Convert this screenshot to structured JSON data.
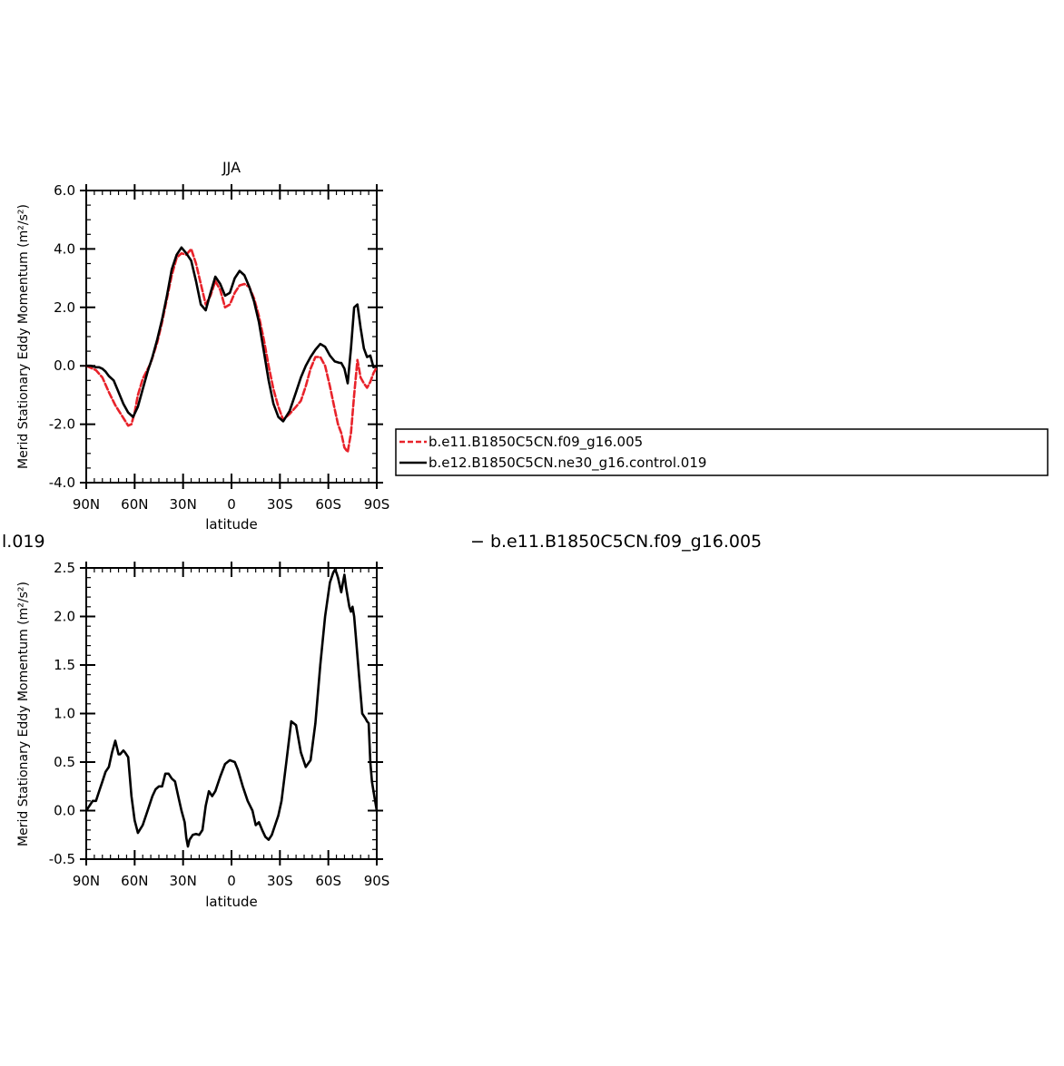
{
  "subtitle_partial": "l.019",
  "diff_title": "− b.e11.B1850C5CN.f09_g16.005",
  "chart_data": [
    {
      "type": "line",
      "title": "JJA",
      "xlabel": "latitude",
      "ylabel": "Merid Stationary Eddy Momentum (m²/s²)",
      "xlim": [
        90,
        -90
      ],
      "ylim": [
        -4,
        6
      ],
      "x_ticks": [
        90,
        60,
        30,
        0,
        -30,
        -60,
        -90
      ],
      "x_tick_labels": [
        "90N",
        "60N",
        "30N",
        "0",
        "30S",
        "60S",
        "90S"
      ],
      "y_ticks": [
        -4,
        -2,
        0,
        2,
        4,
        6
      ],
      "y_tick_labels": [
        "-4.0",
        "-2.0",
        "0.0",
        "2.0",
        "4.0",
        "6.0"
      ],
      "legend_position": "right",
      "series": [
        {
          "name": "b.e11.B1850C5CN.f09_g16.005",
          "color": "#e8222a",
          "dash": true,
          "x": [
            90,
            84,
            80,
            76,
            72,
            68,
            64,
            62,
            60,
            58,
            55,
            50,
            46,
            43,
            40,
            37,
            34,
            31,
            28,
            25,
            22,
            19,
            16,
            13,
            10,
            7,
            4,
            1,
            -2,
            -5,
            -8,
            -11,
            -14,
            -17,
            -20,
            -23,
            -26,
            -29,
            -32,
            -36,
            -40,
            -43,
            -46,
            -49,
            -52,
            -55,
            -58,
            -61,
            -64,
            -66,
            -68,
            -70,
            -72,
            -74,
            -76,
            -78,
            -80,
            -82,
            -84,
            -86,
            -88,
            -90
          ],
          "y": [
            0.0,
            -0.15,
            -0.4,
            -0.9,
            -1.35,
            -1.7,
            -2.05,
            -2.0,
            -1.6,
            -1.0,
            -0.45,
            0.1,
            0.8,
            1.5,
            2.3,
            3.1,
            3.7,
            3.85,
            3.8,
            4.0,
            3.5,
            2.8,
            2.1,
            2.4,
            2.9,
            2.6,
            2.0,
            2.1,
            2.5,
            2.75,
            2.8,
            2.7,
            2.3,
            1.7,
            0.9,
            0.0,
            -0.8,
            -1.4,
            -1.85,
            -1.65,
            -1.4,
            -1.2,
            -0.7,
            -0.1,
            0.3,
            0.3,
            0.0,
            -0.7,
            -1.5,
            -2.0,
            -2.3,
            -2.8,
            -2.95,
            -2.3,
            -1.0,
            0.2,
            -0.4,
            -0.6,
            -0.75,
            -0.55,
            -0.25,
            -0.05
          ]
        },
        {
          "name": "b.e12.B1850C5CN.ne30_g16.control.019",
          "color": "#000000",
          "dash": false,
          "x": [
            90,
            87,
            84,
            82,
            80,
            78,
            76,
            73,
            70,
            67,
            64,
            61,
            58,
            55,
            52,
            49,
            46,
            43,
            40,
            37,
            34,
            31,
            28,
            25,
            22,
            19,
            16,
            13,
            10,
            7,
            4,
            1,
            -2,
            -5,
            -8,
            -11,
            -14,
            -17,
            -20,
            -23,
            -26,
            -29,
            -32,
            -36,
            -40,
            -43,
            -46,
            -49,
            -52,
            -55,
            -58,
            -61,
            -64,
            -67,
            -68,
            -70,
            -72,
            -74,
            -76,
            -78,
            -80,
            -82,
            -84,
            -86,
            -88,
            -90
          ],
          "y": [
            0.0,
            0.0,
            -0.05,
            -0.05,
            -0.1,
            -0.2,
            -0.35,
            -0.5,
            -0.9,
            -1.3,
            -1.6,
            -1.75,
            -1.4,
            -0.8,
            -0.2,
            0.3,
            0.9,
            1.6,
            2.4,
            3.3,
            3.8,
            4.05,
            3.85,
            3.6,
            2.9,
            2.1,
            1.9,
            2.5,
            3.05,
            2.8,
            2.4,
            2.5,
            3.0,
            3.25,
            3.1,
            2.7,
            2.2,
            1.5,
            0.5,
            -0.5,
            -1.3,
            -1.75,
            -1.9,
            -1.55,
            -0.9,
            -0.4,
            0.0,
            0.3,
            0.55,
            0.75,
            0.65,
            0.35,
            0.15,
            0.1,
            0.1,
            -0.1,
            -0.6,
            0.6,
            2.0,
            2.1,
            1.3,
            0.6,
            0.3,
            0.35,
            -0.05,
            0.0
          ]
        }
      ]
    },
    {
      "type": "line",
      "title": "",
      "xlabel": "latitude",
      "ylabel": "Merid Stationary Eddy Momentum (m²/s²)",
      "xlim": [
        90,
        -90
      ],
      "ylim": [
        -0.5,
        2.5
      ],
      "x_ticks": [
        90,
        60,
        30,
        0,
        -30,
        -60,
        -90
      ],
      "x_tick_labels": [
        "90N",
        "60N",
        "30N",
        "0",
        "30S",
        "60S",
        "90S"
      ],
      "y_ticks": [
        -0.5,
        0.0,
        0.5,
        1.0,
        1.5,
        2.0,
        2.5
      ],
      "y_tick_labels": [
        "-0.5",
        "0.0",
        "0.5",
        "1.0",
        "1.5",
        "2.0",
        "2.5"
      ],
      "series": [
        {
          "color": "#000000",
          "dash": false,
          "x": [
            90,
            88,
            86,
            84,
            82,
            80,
            78,
            76,
            74,
            72,
            71,
            70,
            69,
            68,
            67,
            66,
            64,
            62,
            60,
            58,
            55,
            52,
            49,
            47,
            45,
            43,
            41,
            39,
            37,
            35,
            33,
            31,
            29,
            28,
            27,
            26,
            24,
            22,
            20,
            18,
            16,
            14,
            12,
            10,
            7,
            4,
            1,
            -2,
            -4,
            -7,
            -10,
            -13,
            -15,
            -17,
            -19,
            -21,
            -23,
            -25,
            -27,
            -29,
            -31,
            -34,
            -37,
            -40,
            -43,
            -46,
            -49,
            -52,
            -55,
            -58,
            -61,
            -63,
            -64,
            -65,
            -66,
            -68,
            -69,
            -70,
            -71,
            -72,
            -73,
            -74,
            -75,
            -76,
            -77,
            -79,
            -81,
            -83,
            -84,
            -85,
            -86,
            -87,
            -88,
            -90
          ],
          "y": [
            0.0,
            0.05,
            0.1,
            0.1,
            0.2,
            0.3,
            0.4,
            0.45,
            0.6,
            0.72,
            0.65,
            0.58,
            0.58,
            0.6,
            0.62,
            0.6,
            0.55,
            0.15,
            -0.1,
            -0.23,
            -0.15,
            0.0,
            0.15,
            0.22,
            0.25,
            0.25,
            0.38,
            0.38,
            0.33,
            0.3,
            0.15,
            0.0,
            -0.12,
            -0.28,
            -0.37,
            -0.3,
            -0.25,
            -0.24,
            -0.25,
            -0.2,
            0.05,
            0.2,
            0.15,
            0.2,
            0.35,
            0.48,
            0.52,
            0.5,
            0.42,
            0.25,
            0.1,
            0.0,
            -0.15,
            -0.12,
            -0.2,
            -0.27,
            -0.3,
            -0.25,
            -0.15,
            -0.05,
            0.1,
            0.5,
            0.92,
            0.88,
            0.6,
            0.45,
            0.52,
            0.9,
            1.5,
            2.0,
            2.35,
            2.45,
            2.48,
            2.45,
            2.4,
            2.25,
            2.35,
            2.43,
            2.3,
            2.2,
            2.1,
            2.05,
            2.1,
            2.0,
            1.8,
            1.4,
            1.0,
            0.95,
            0.92,
            0.9,
            0.5,
            0.3,
            0.2,
            0.0
          ]
        }
      ]
    }
  ],
  "legend": {
    "items": [
      {
        "label": "b.e11.B1850C5CN.f09_g16.005",
        "color": "#e8222a",
        "dash": true
      },
      {
        "label": "b.e12.B1850C5CN.ne30_g16.control.019",
        "color": "#000000",
        "dash": false
      }
    ]
  }
}
